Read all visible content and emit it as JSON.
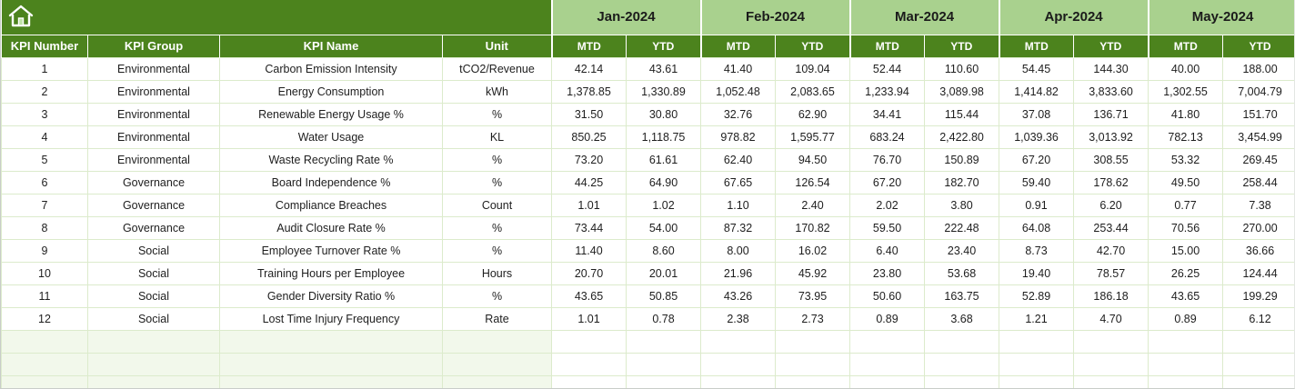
{
  "theme": {
    "dark_green": "#4c831d",
    "light_green": "#a9d18e",
    "grid_line": "#dcebcc",
    "row_bg": "#ffffff"
  },
  "toolbar": {
    "home_icon": "home"
  },
  "table": {
    "months": [
      "Jan-2024",
      "Feb-2024",
      "Mar-2024",
      "Apr-2024",
      "May-2024"
    ],
    "sub_headers": [
      "MTD",
      "YTD"
    ],
    "left_headers": [
      "KPI Number",
      "KPI Group",
      "KPI Name",
      "Unit"
    ],
    "empty_row_count": 2,
    "rows": [
      {
        "num": "1",
        "group": "Environmental",
        "name": "Carbon Emission Intensity",
        "unit": "tCO2/Revenue",
        "values": [
          "42.14",
          "43.61",
          "41.40",
          "109.04",
          "52.44",
          "110.60",
          "54.45",
          "144.30",
          "40.00",
          "188.00"
        ]
      },
      {
        "num": "2",
        "group": "Environmental",
        "name": "Energy Consumption",
        "unit": "kWh",
        "values": [
          "1,378.85",
          "1,330.89",
          "1,052.48",
          "2,083.65",
          "1,233.94",
          "3,089.98",
          "1,414.82",
          "3,833.60",
          "1,302.55",
          "7,004.79"
        ]
      },
      {
        "num": "3",
        "group": "Environmental",
        "name": "Renewable Energy Usage %",
        "unit": "%",
        "values": [
          "31.50",
          "30.80",
          "32.76",
          "62.90",
          "34.41",
          "115.44",
          "37.08",
          "136.71",
          "41.80",
          "151.70"
        ]
      },
      {
        "num": "4",
        "group": "Environmental",
        "name": "Water Usage",
        "unit": "KL",
        "values": [
          "850.25",
          "1,118.75",
          "978.82",
          "1,595.77",
          "683.24",
          "2,422.80",
          "1,039.36",
          "3,013.92",
          "782.13",
          "3,454.99"
        ]
      },
      {
        "num": "5",
        "group": "Environmental",
        "name": "Waste Recycling Rate %",
        "unit": "%",
        "values": [
          "73.20",
          "61.61",
          "62.40",
          "94.50",
          "76.70",
          "150.89",
          "67.20",
          "308.55",
          "53.32",
          "269.45"
        ]
      },
      {
        "num": "6",
        "group": "Governance",
        "name": "Board Independence %",
        "unit": "%",
        "values": [
          "44.25",
          "64.90",
          "67.65",
          "126.54",
          "67.20",
          "182.70",
          "59.40",
          "178.62",
          "49.50",
          "258.44"
        ]
      },
      {
        "num": "7",
        "group": "Governance",
        "name": "Compliance Breaches",
        "unit": "Count",
        "values": [
          "1.01",
          "1.02",
          "1.10",
          "2.40",
          "2.02",
          "3.80",
          "0.91",
          "6.20",
          "0.77",
          "7.38"
        ]
      },
      {
        "num": "8",
        "group": "Governance",
        "name": "Audit Closure Rate %",
        "unit": "%",
        "values": [
          "73.44",
          "54.00",
          "87.32",
          "170.82",
          "59.50",
          "222.48",
          "64.08",
          "253.44",
          "70.56",
          "270.00"
        ]
      },
      {
        "num": "9",
        "group": "Social",
        "name": "Employee Turnover Rate %",
        "unit": "%",
        "values": [
          "11.40",
          "8.60",
          "8.00",
          "16.02",
          "6.40",
          "23.40",
          "8.73",
          "42.70",
          "15.00",
          "36.66"
        ]
      },
      {
        "num": "10",
        "group": "Social",
        "name": "Training Hours per Employee",
        "unit": "Hours",
        "values": [
          "20.70",
          "20.01",
          "21.96",
          "45.92",
          "23.80",
          "53.68",
          "19.40",
          "78.57",
          "26.25",
          "124.44"
        ]
      },
      {
        "num": "11",
        "group": "Social",
        "name": "Gender Diversity Ratio %",
        "unit": "%",
        "values": [
          "43.65",
          "50.85",
          "43.26",
          "73.95",
          "50.60",
          "163.75",
          "52.89",
          "186.18",
          "43.65",
          "199.29"
        ]
      },
      {
        "num": "12",
        "group": "Social",
        "name": "Lost Time Injury Frequency",
        "unit": "Rate",
        "values": [
          "1.01",
          "0.78",
          "2.38",
          "2.73",
          "0.89",
          "3.68",
          "1.21",
          "4.70",
          "0.89",
          "6.12"
        ]
      }
    ]
  }
}
